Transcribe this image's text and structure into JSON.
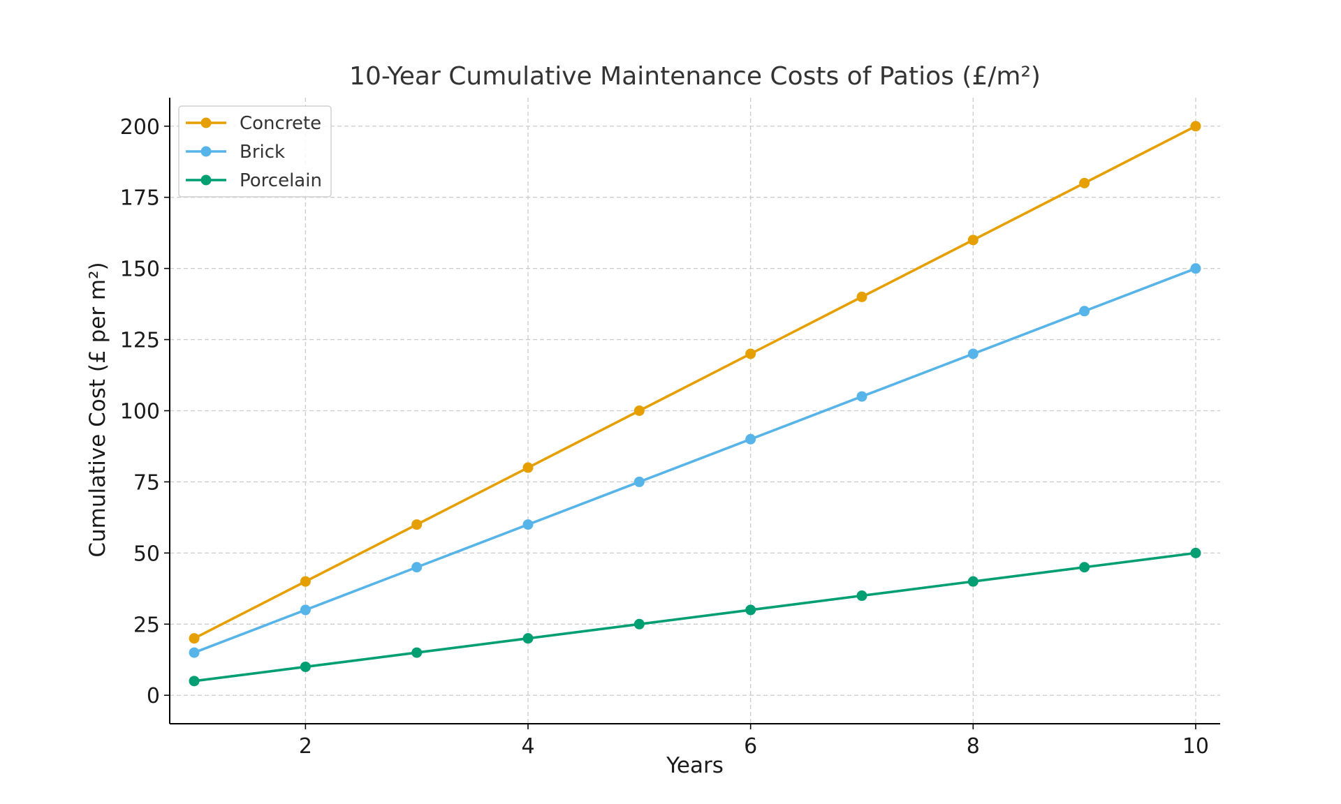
{
  "chart_data": {
    "type": "line",
    "title": "10-Year Cumulative Maintenance Costs of Patios (£/m²)",
    "xlabel": "Years",
    "ylabel": "Cumulative Cost (£ per m²)",
    "x": [
      1,
      2,
      3,
      4,
      5,
      6,
      7,
      8,
      9,
      10
    ],
    "xlim": [
      0.78,
      10.22
    ],
    "ylim": [
      -10,
      210
    ],
    "xticks": [
      2,
      4,
      6,
      8,
      10
    ],
    "yticks": [
      0,
      25,
      50,
      75,
      100,
      125,
      150,
      175,
      200
    ],
    "grid": true,
    "legend_position": "top-left",
    "series": [
      {
        "name": "Concrete",
        "color": "#E69F00",
        "values": [
          20,
          40,
          60,
          80,
          100,
          120,
          140,
          160,
          180,
          200
        ]
      },
      {
        "name": "Brick",
        "color": "#56B4E9",
        "values": [
          15,
          30,
          45,
          60,
          75,
          90,
          105,
          120,
          135,
          150
        ]
      },
      {
        "name": "Porcelain",
        "color": "#009E73",
        "values": [
          5,
          10,
          15,
          20,
          25,
          30,
          35,
          40,
          45,
          50
        ]
      }
    ]
  }
}
